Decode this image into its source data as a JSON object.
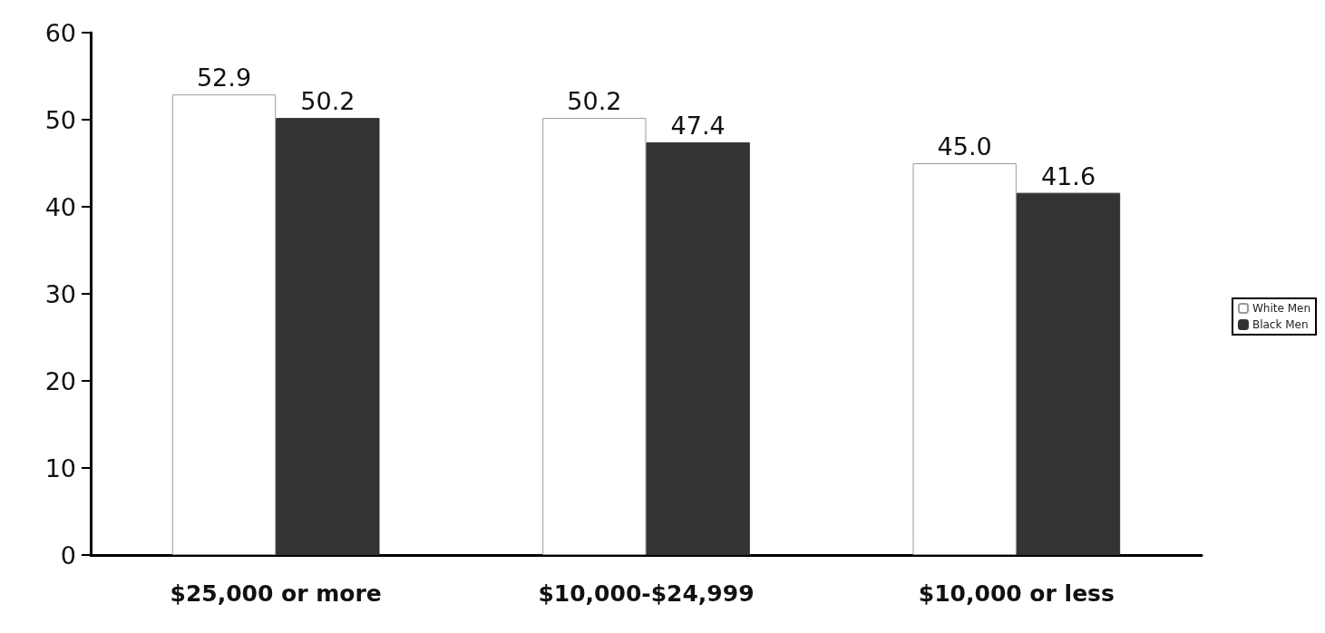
{
  "chart_data": {
    "type": "bar",
    "categories": [
      "$25,000 or more",
      "$10,000-$24,999",
      "$10,000 or less"
    ],
    "series": [
      {
        "name": "White Men",
        "color": "#ffffff",
        "values": [
          52.9,
          50.2,
          45.0
        ],
        "value_labels": [
          "52.9",
          "50.2",
          "45.0"
        ]
      },
      {
        "name": "Black Men",
        "color": "#333333",
        "values": [
          50.2,
          47.4,
          41.6
        ],
        "value_labels": [
          "50.2",
          "47.4",
          "41.6"
        ]
      }
    ],
    "ylim": [
      0,
      60
    ],
    "yticks": [
      0,
      10,
      20,
      30,
      40,
      50,
      60
    ],
    "grid": false,
    "legend": "right"
  }
}
